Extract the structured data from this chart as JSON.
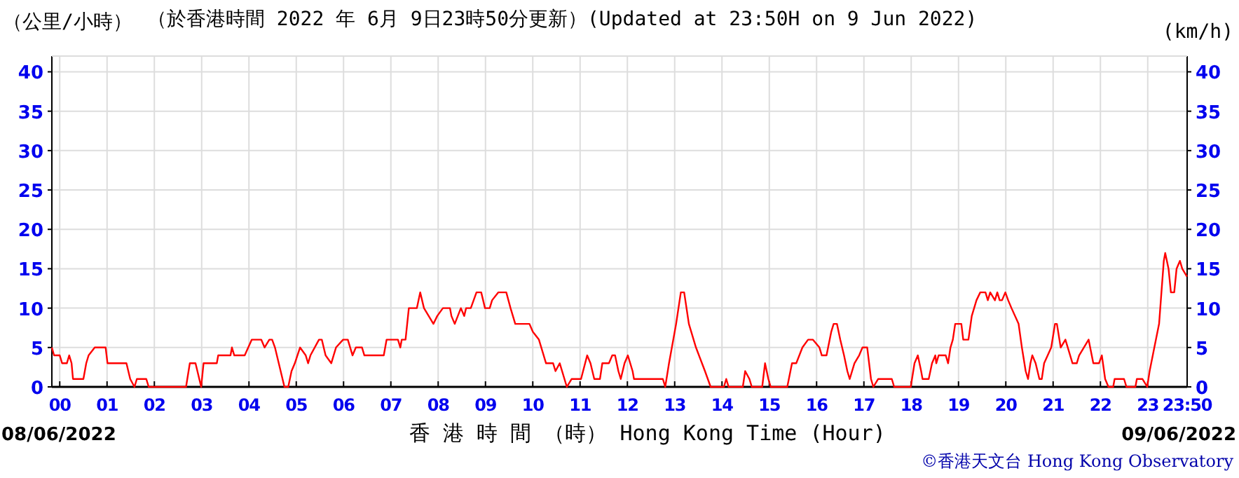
{
  "chart_data": {
    "type": "line",
    "title": "（於香港時間 2022 年 6月 9日23時50分更新）(Updated at 23:50H on 9 Jun 2022)",
    "ylabel": "（公里/小時）",
    "y2label": "(km/h)",
    "xlabel": "香 港 時 間 （時） Hong Kong Time (Hour)",
    "annotations": [
      "08/06/2022",
      "09/06/2022",
      "©香港天文台 Hong Kong Observatory"
    ],
    "xlim": [
      -0.1667,
      23.8333
    ],
    "xticks": [
      {
        "value": 0,
        "label": "00"
      },
      {
        "value": 1,
        "label": "01"
      },
      {
        "value": 2,
        "label": "02"
      },
      {
        "value": 3,
        "label": "03"
      },
      {
        "value": 4,
        "label": "04"
      },
      {
        "value": 5,
        "label": "05"
      },
      {
        "value": 6,
        "label": "06"
      },
      {
        "value": 7,
        "label": "07"
      },
      {
        "value": 8,
        "label": "08"
      },
      {
        "value": 9,
        "label": "09"
      },
      10,
      11,
      12,
      13,
      14,
      15,
      16,
      17,
      18,
      19,
      20,
      21,
      22,
      23,
      {
        "value": 23.8333,
        "label": "23:50"
      }
    ],
    "ylim": [
      0,
      42
    ],
    "yticks": [
      0,
      5,
      10,
      15,
      20,
      25,
      30,
      35,
      40
    ],
    "y2lim": [
      0,
      42
    ],
    "y2ticks": [
      0,
      5,
      10,
      15,
      20,
      25,
      30,
      35,
      40
    ],
    "grid": true,
    "line_style": "solid",
    "series": [
      {
        "color": "#ff0000",
        "x": [
          -0.1667,
          -0.12,
          0,
          0.05,
          0.15,
          0.2,
          0.25,
          0.28,
          0.5,
          0.56,
          0.61,
          0.74,
          0.97,
          1.01,
          1.41,
          1.49,
          1.58,
          1.63,
          1.83,
          1.88,
          2.67,
          2.75,
          2.87,
          2.99,
          3.04,
          3.32,
          3.35,
          3.61,
          3.64,
          3.69,
          3.91,
          4.06,
          4.26,
          4.33,
          4.43,
          4.49,
          4.55,
          4.63,
          4.75,
          4.83,
          4.9,
          4.97,
          5.08,
          5.2,
          5.25,
          5.3,
          5.48,
          5.54,
          5.62,
          5.74,
          5.84,
          5.99,
          6.09,
          6.19,
          6.26,
          6.39,
          6.44,
          6.85,
          6.91,
          7.15,
          7.2,
          7.23,
          7.31,
          7.38,
          7.55,
          7.62,
          7.7,
          7.8,
          7.9,
          7.98,
          8.1,
          8.25,
          8.28,
          8.35,
          8.48,
          8.55,
          8.59,
          8.69,
          8.81,
          8.91,
          8.99,
          9.09,
          9.14,
          9.27,
          9.44,
          9.53,
          9.63,
          9.93,
          10.0,
          10.13,
          10.28,
          10.43,
          10.48,
          10.57,
          10.72,
          10.82,
          11.02,
          11.15,
          11.22,
          11.3,
          11.42,
          11.47,
          11.61,
          11.68,
          11.74,
          11.81,
          11.86,
          11.94,
          12.01,
          12.11,
          12.14,
          12.75,
          12.8,
          12.88,
          13.03,
          13.13,
          13.2,
          13.3,
          13.45,
          13.64,
          13.76,
          14.04,
          14.09,
          14.14,
          14.44,
          14.49,
          14.58,
          14.63,
          14.85,
          14.91,
          14.98,
          15.03,
          15.38,
          15.48,
          15.57,
          15.7,
          15.82,
          15.92,
          16.06,
          16.11,
          16.21,
          16.31,
          16.36,
          16.43,
          16.5,
          16.58,
          16.65,
          16.7,
          16.8,
          16.9,
          16.97,
          17.07,
          17.15,
          17.2,
          17.3,
          17.4,
          17.59,
          17.64,
          17.99,
          18.07,
          18.14,
          18.21,
          18.24,
          18.37,
          18.44,
          18.51,
          18.53,
          18.58,
          18.73,
          18.78,
          18.83,
          18.88,
          18.93,
          19.06,
          19.1,
          19.21,
          19.28,
          19.38,
          19.46,
          19.57,
          19.62,
          19.67,
          19.77,
          19.82,
          19.87,
          19.92,
          19.99,
          20.05,
          20.12,
          20.27,
          20.34,
          20.42,
          20.47,
          20.52,
          20.56,
          20.63,
          20.71,
          20.76,
          20.81,
          20.96,
          21.04,
          21.08,
          21.16,
          21.26,
          21.41,
          21.5,
          21.55,
          21.65,
          21.75,
          21.85,
          21.97,
          22.03,
          22.1,
          22.17,
          22.27,
          22.3,
          22.5,
          22.55,
          22.74,
          22.77,
          22.89,
          22.99,
          23.04,
          23.14,
          23.24,
          23.29,
          23.34,
          23.37,
          23.44,
          23.49,
          23.56,
          23.61,
          23.68,
          23.73,
          23.83
        ],
        "values": [
          5,
          4,
          4,
          3,
          3,
          4,
          3,
          1,
          1,
          3,
          4,
          5,
          5,
          3,
          3,
          1,
          0,
          1,
          1,
          0,
          0,
          3,
          3,
          0,
          3,
          3,
          4,
          4,
          5,
          4,
          4,
          6,
          6,
          5,
          6,
          6,
          5,
          3,
          0,
          0,
          2,
          3,
          5,
          4,
          3,
          4,
          6,
          6,
          4,
          3,
          5,
          6,
          6,
          4,
          5,
          5,
          4,
          4,
          6,
          6,
          5,
          6,
          6,
          10,
          10,
          12,
          10,
          9,
          8,
          9,
          10,
          10,
          9,
          8,
          10,
          9,
          10,
          10,
          12,
          12,
          10,
          10,
          11,
          12,
          12,
          10,
          8,
          8,
          7,
          6,
          3,
          3,
          2,
          3,
          0,
          1,
          1,
          4,
          3,
          1,
          1,
          3,
          3,
          4,
          4,
          2,
          1,
          3,
          4,
          2,
          1,
          1,
          0,
          3,
          8,
          12,
          12,
          8,
          5,
          2,
          0,
          0,
          1,
          0,
          0,
          2,
          1,
          0,
          0,
          3,
          1,
          0,
          0,
          3,
          3,
          5,
          6,
          6,
          5,
          4,
          4,
          7,
          8,
          8,
          6,
          4,
          2,
          1,
          3,
          4,
          5,
          5,
          1,
          0,
          1,
          1,
          1,
          0,
          0,
          3,
          4,
          2,
          1,
          1,
          3,
          4,
          3,
          4,
          4,
          3,
          5,
          6,
          8,
          8,
          6,
          6,
          9,
          11,
          12,
          12,
          11,
          12,
          11,
          12,
          11,
          11,
          12,
          11,
          10,
          8,
          5,
          2,
          1,
          3,
          4,
          3,
          1,
          1,
          3,
          5,
          8,
          8,
          5,
          6,
          3,
          3,
          4,
          5,
          6,
          3,
          3,
          4,
          1,
          0,
          0,
          1,
          1,
          0,
          0,
          1,
          1,
          0,
          2,
          5,
          8,
          12,
          16,
          17,
          15,
          12,
          12,
          15,
          16,
          15,
          14
        ]
      }
    ]
  }
}
